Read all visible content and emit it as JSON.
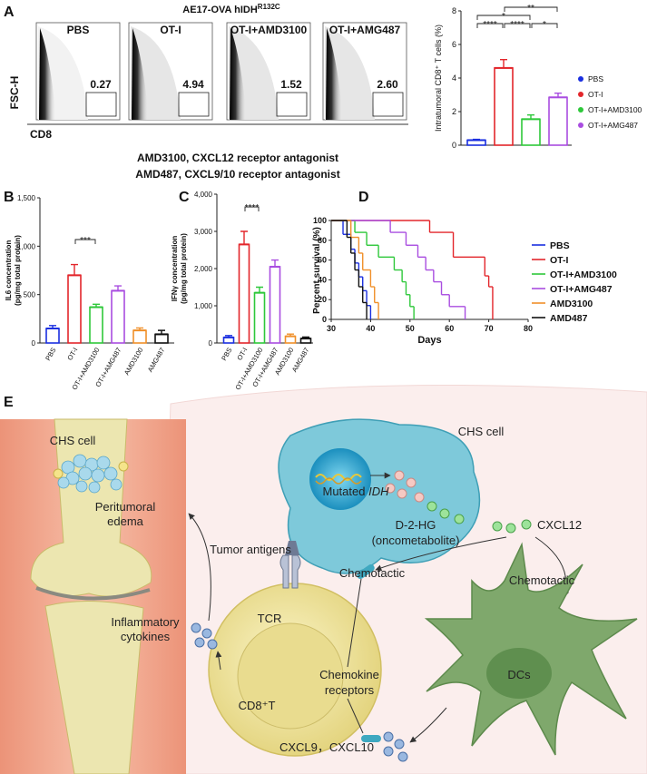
{
  "panel_labels": {
    "a": "A",
    "b": "B",
    "c": "C",
    "d": "D",
    "e": "E"
  },
  "chart_data": [
    {
      "type": "flow",
      "title": "AE17-OVA hIDH",
      "title_superscript": "R132C",
      "categories": [
        "PBS",
        "OT-I",
        "OT-I+AMD3100",
        "OT-I+AMG487"
      ],
      "values": [
        0.27,
        4.94,
        1.52,
        2.6
      ],
      "value_labels": [
        "0.27",
        "4.94",
        "1.52",
        "2.60"
      ],
      "ylabel": "FSC-H",
      "xlabel": "CD8",
      "notes": [
        "AMD3100, CXCL12 receptor antagonist",
        "AMD487, CXCL9/10 receptor antagonist"
      ]
    },
    {
      "type": "bar",
      "ylabel": "Intratumoral CD8⁺ T cells (%)",
      "categories": [
        "PBS",
        "OT-I",
        "OT-I+AMD3100",
        "OT-I+AMG487"
      ],
      "values": [
        0.3,
        4.6,
        1.55,
        2.85
      ],
      "errors": [
        0.05,
        0.5,
        0.25,
        0.25
      ],
      "colors": [
        "#1a2fe0",
        "#e3262b",
        "#2ec83a",
        "#a94de0"
      ],
      "ylim": [
        0,
        8
      ],
      "yticks": [
        0,
        2,
        4,
        6,
        8
      ],
      "legend": true,
      "significance": [
        {
          "label": "**",
          "between": [
            "OT-I",
            "OT-I+AMG487"
          ]
        },
        {
          "label": "*",
          "between": [
            "PBS",
            "OT-I+AMD3100"
          ]
        },
        {
          "label": "****",
          "between": [
            "PBS",
            "OT-I"
          ]
        },
        {
          "label": "****",
          "between": [
            "OT-I",
            "OT-I+AMD3100"
          ]
        },
        {
          "label": "*",
          "between": [
            "OT-I+AMD3100",
            "OT-I+AMG487"
          ]
        }
      ]
    },
    {
      "type": "bar",
      "ylabel": [
        "IL6 concentration",
        "(pg/mg total protein)"
      ],
      "categories": [
        "PBS",
        "OT-I",
        "OT-I+AMD3100",
        "OT-I+AMG487",
        "AMD3100",
        "AMG487"
      ],
      "values": [
        150,
        700,
        370,
        540,
        130,
        90
      ],
      "errors": [
        30,
        110,
        30,
        50,
        25,
        40
      ],
      "colors": [
        "#1a2fe0",
        "#e3262b",
        "#2ec83a",
        "#a94de0",
        "#f0902a",
        "#111111"
      ],
      "ylim": [
        0,
        1500
      ],
      "yticks": [
        0,
        500,
        {
          "value": 1000,
          "label": "1,000"
        },
        {
          "value": 1500,
          "label": "1,500"
        }
      ],
      "legend": false,
      "significance": [
        {
          "label": "***",
          "between": [
            "OT-I",
            "OT-I+AMD3100"
          ]
        }
      ]
    },
    {
      "type": "bar",
      "ylabel": [
        "IFNγ concentration",
        "(pg/mg total protein)"
      ],
      "categories": [
        "PBS",
        "OT-I",
        "OT-I+AMD3100",
        "OT-I+AMG487",
        "AMD3100",
        "AMG487"
      ],
      "values": [
        150,
        2650,
        1350,
        2050,
        180,
        120
      ],
      "errors": [
        50,
        350,
        150,
        180,
        60,
        40
      ],
      "colors": [
        "#1a2fe0",
        "#e3262b",
        "#2ec83a",
        "#a94de0",
        "#f0902a",
        "#111111"
      ],
      "ylim": [
        0,
        4000
      ],
      "yticks": [
        0,
        {
          "value": 1000,
          "label": "1,000"
        },
        {
          "value": 2000,
          "label": "2,000"
        },
        {
          "value": 3000,
          "label": "3,000"
        },
        {
          "value": 4000,
          "label": "4,000"
        }
      ],
      "legend": false,
      "significance": [
        {
          "label": "****",
          "between": [
            "OT-I",
            "OT-I+AMD3100"
          ]
        }
      ]
    },
    {
      "type": "line",
      "step": true,
      "ylabel": "Percent survival (%)",
      "xlabel": "Days",
      "xlim": [
        30,
        80
      ],
      "xticks": [
        30,
        40,
        50,
        60,
        70,
        80
      ],
      "ylim": [
        0,
        100
      ],
      "yticks": [
        0,
        20,
        40,
        60,
        80,
        100
      ],
      "series": [
        {
          "name": "PBS",
          "color": "#1a2fe0",
          "x": [
            30,
            33,
            35,
            36,
            37,
            38,
            39,
            40
          ],
          "values": [
            100,
            86,
            71,
            57,
            43,
            29,
            14,
            0
          ]
        },
        {
          "name": "OT-I",
          "color": "#e3262b",
          "x": [
            30,
            55,
            61,
            69,
            70,
            71
          ],
          "values": [
            100,
            88,
            63,
            44,
            33,
            0
          ]
        },
        {
          "name": "OT-I+AMD3100",
          "color": "#2ec83a",
          "x": [
            30,
            36,
            39,
            42,
            46,
            48,
            49,
            50,
            51
          ],
          "values": [
            100,
            88,
            75,
            63,
            50,
            38,
            25,
            13,
            0
          ]
        },
        {
          "name": "OT-I+AMG487",
          "color": "#a94de0",
          "x": [
            30,
            45,
            49,
            52,
            54,
            56,
            58,
            60,
            64
          ],
          "values": [
            100,
            88,
            75,
            63,
            50,
            38,
            25,
            13,
            0
          ]
        },
        {
          "name": "AMD3100",
          "color": "#f0902a",
          "x": [
            30,
            35,
            37,
            38,
            40,
            41,
            42
          ],
          "values": [
            100,
            83,
            67,
            50,
            33,
            17,
            0
          ]
        },
        {
          "name": "AMD487",
          "color": "#111111",
          "x": [
            30,
            34,
            35,
            36,
            37,
            38,
            39
          ],
          "values": [
            100,
            83,
            67,
            50,
            33,
            17,
            0
          ]
        }
      ]
    }
  ],
  "diagram": {
    "leg_cell": "CHS cell",
    "edema": [
      "Peritumoral",
      "edema"
    ],
    "cytokines": [
      "Inflammatory",
      "cytokines"
    ],
    "tumor_antigens": "Tumor antigens",
    "tcr": "TCR",
    "t_cell": "CD8⁺T",
    "receptors": [
      "Chemokine",
      "receptors"
    ],
    "chs_cell": "CHS cell",
    "mutated": "Mutated ",
    "gene": "IDH",
    "metabolite": [
      "D-2-HG",
      "(oncometabolite)"
    ],
    "cxcl12": "CXCL12",
    "chemotactic": [
      "Chemotactic",
      "Chemotactic"
    ],
    "dcs": "DCs",
    "cxcl9_10": "CXCL9，CXCL10"
  }
}
